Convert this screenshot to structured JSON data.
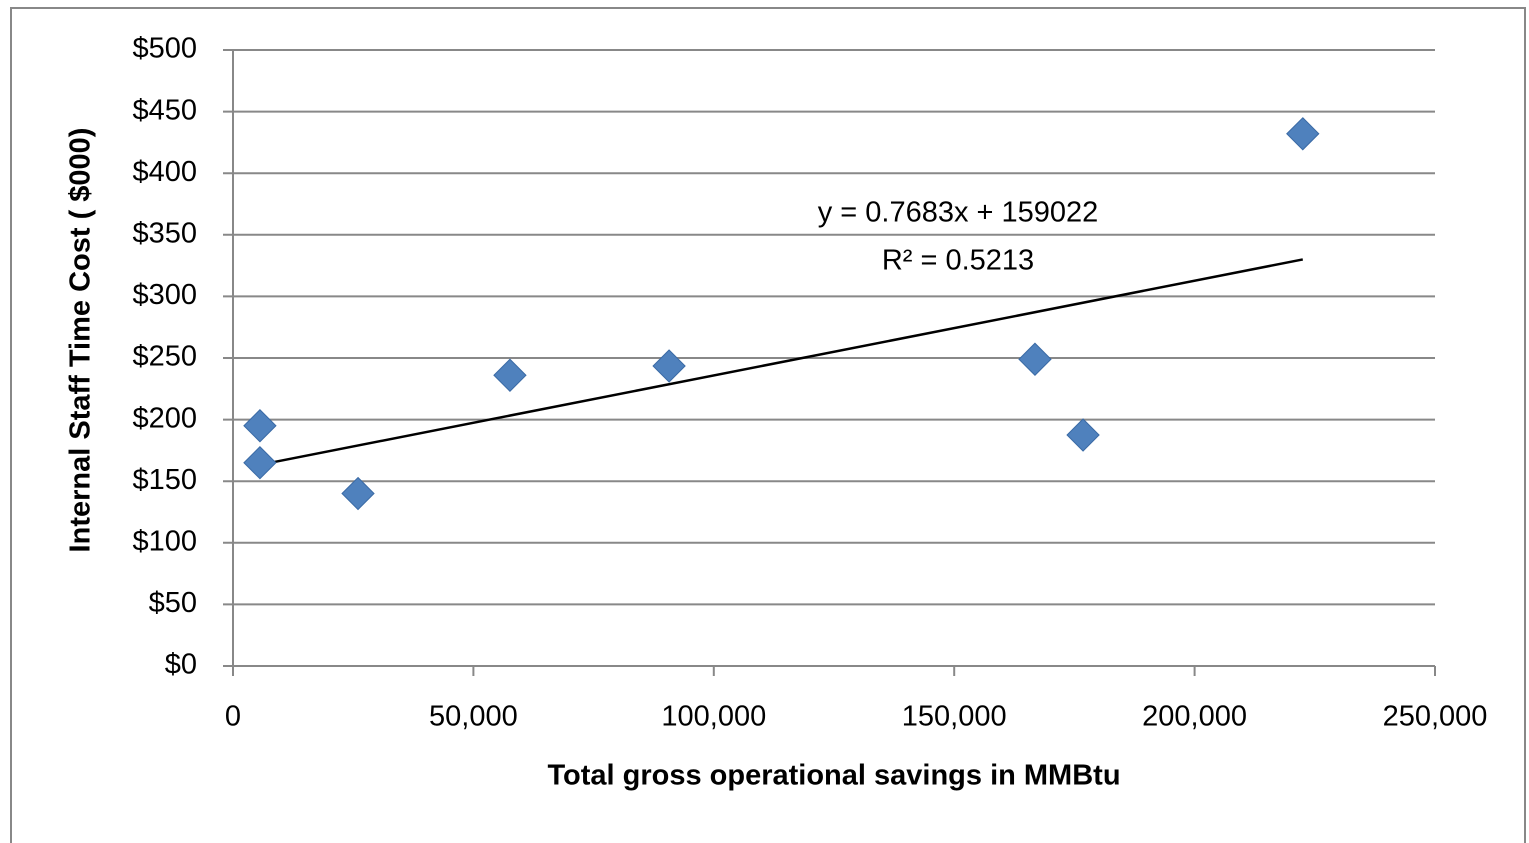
{
  "chart_data": {
    "type": "scatter",
    "x_label": "Total gross operational savings in MMBtu",
    "y_label": "Internal Staff Time Cost ( $000)",
    "x": [
      5600,
      5600,
      26000,
      57600,
      90700,
      166800,
      176800,
      222500
    ],
    "values": [
      195,
      165,
      140,
      236,
      243.5,
      249,
      187.5,
      432
    ],
    "color": "#4f81bd",
    "trendline": {
      "x": [
        5600,
        222500
      ],
      "values": [
        163.3,
        330.0
      ],
      "color": "#000000"
    },
    "annotations": [
      "y = 0.7683x + 159022",
      "R² = 0.5213"
    ],
    "xlim": [
      0,
      250000
    ],
    "xticks": [
      0,
      {
        "value": 50000,
        "label": "50,000"
      },
      {
        "value": 100000,
        "label": "100,000"
      },
      {
        "value": 150000,
        "label": "150,000"
      },
      {
        "value": 200000,
        "label": "200,000"
      },
      {
        "value": 250000,
        "label": "250,000"
      }
    ],
    "ylim": [
      0,
      500
    ],
    "yticks": [
      {
        "value": 0,
        "label": "$0"
      },
      {
        "value": 50,
        "label": "$50"
      },
      {
        "value": 100,
        "label": "$100"
      },
      {
        "value": 150,
        "label": "$150"
      },
      {
        "value": 200,
        "label": "$200"
      },
      {
        "value": 250,
        "label": "$250"
      },
      {
        "value": 300,
        "label": "$300"
      },
      {
        "value": 350,
        "label": "$350"
      },
      {
        "value": 400,
        "label": "$400"
      },
      {
        "value": 450,
        "label": "$450"
      },
      {
        "value": 500,
        "label": "$500"
      }
    ],
    "grid": true
  }
}
